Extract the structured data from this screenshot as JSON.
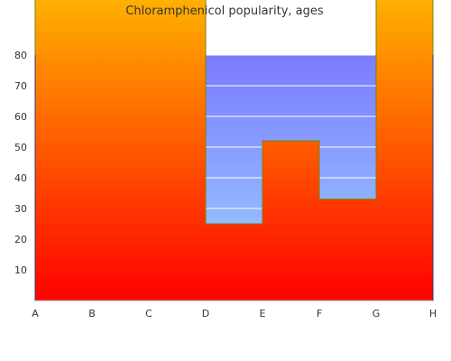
{
  "chart_data": {
    "type": "area",
    "title": "Chloramphenicol popularity, ages",
    "xlabel": "",
    "ylabel": "",
    "categories": [
      "A",
      "B",
      "C",
      "D",
      "E",
      "F",
      "G",
      "H"
    ],
    "series": [
      {
        "values": [
          100,
          100,
          100,
          25,
          52,
          33,
          100,
          80
        ],
        "style": "step"
      }
    ],
    "ylim": [
      0,
      100
    ],
    "y_ticks": [
      10,
      20,
      30,
      40,
      50,
      60,
      70,
      80
    ],
    "grid": "horizontal",
    "fill_gradient": {
      "top": "#ffb000",
      "bottom": "#ff0000"
    },
    "background_gradient": {
      "top": "#7b7bff",
      "bottom": "#9fd6ff"
    },
    "line_color": "#808000"
  }
}
